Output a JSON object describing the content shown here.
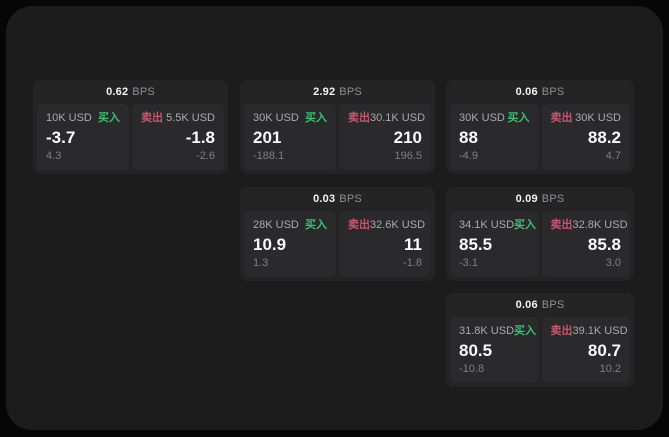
{
  "labels": {
    "bps": "BPS",
    "buy": "买入",
    "sell": "卖出"
  },
  "colors": {
    "buy_green": "#36c26e",
    "sell_red": "#c9556b",
    "panel_bg": "#1c1c1d",
    "card_bg": "#242425",
    "tile_bg": "#2a2a2c"
  },
  "cards": [
    {
      "bps": "0.62",
      "buy": {
        "amount": "10K USD",
        "value": "-3.7",
        "delta": "4.3"
      },
      "sell": {
        "amount": "5.5K USD",
        "value": "-1.8",
        "delta": "-2.6"
      }
    },
    {
      "bps": "2.92",
      "buy": {
        "amount": "30K USD",
        "value": "201",
        "delta": "-188.1"
      },
      "sell": {
        "amount": "30.1K USD",
        "value": "210",
        "delta": "196.5"
      }
    },
    {
      "bps": "0.06",
      "buy": {
        "amount": "30K USD",
        "value": "88",
        "delta": "-4.9"
      },
      "sell": {
        "amount": "30K USD",
        "value": "88.2",
        "delta": "4.7"
      }
    },
    {
      "bps": "0.03",
      "buy": {
        "amount": "28K USD",
        "value": "10.9",
        "delta": "1.3"
      },
      "sell": {
        "amount": "32.6K USD",
        "value": "11",
        "delta": "-1.8"
      }
    },
    {
      "bps": "0.09",
      "buy": {
        "amount": "34.1K USD",
        "value": "85.5",
        "delta": "-3.1"
      },
      "sell": {
        "amount": "32.8K USD",
        "value": "85.8",
        "delta": "3.0"
      }
    },
    {
      "bps": "0.06",
      "buy": {
        "amount": "31.8K USD",
        "value": "80.5",
        "delta": "-10.8"
      },
      "sell": {
        "amount": "39.1K USD",
        "value": "80.7",
        "delta": "10.2"
      }
    }
  ]
}
